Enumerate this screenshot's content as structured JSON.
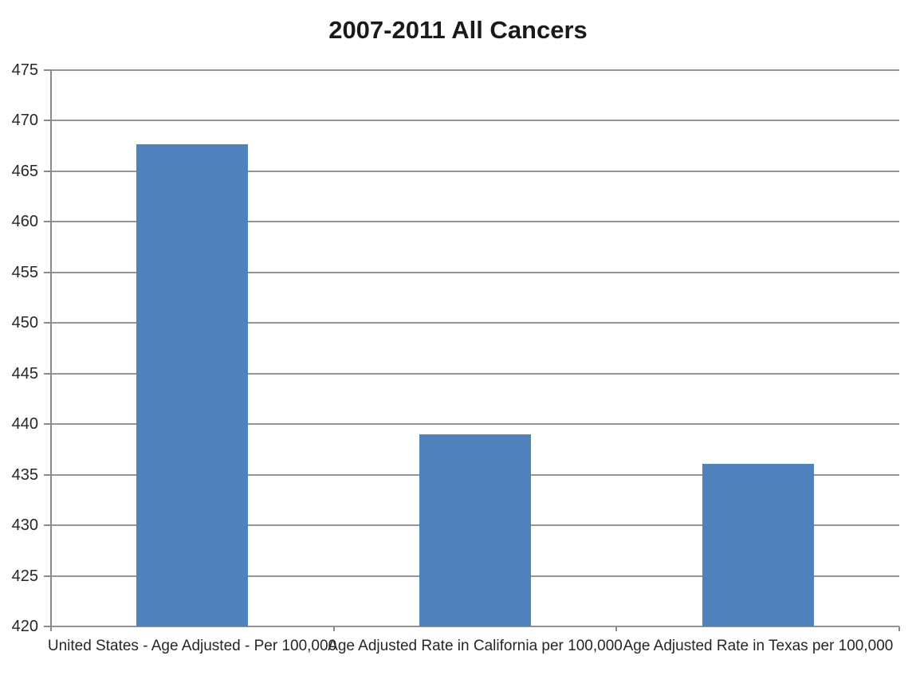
{
  "chart_data": {
    "type": "bar",
    "title": "2007-2011 All Cancers",
    "categories": [
      "United States - Age Adjusted - Per 100,000",
      "Age Adjusted Rate in California per 100,000",
      "Age Adjusted Rate in Texas per 100,000"
    ],
    "values": [
      467.7,
      439,
      436.1
    ],
    "xlabel": "",
    "ylabel": "",
    "ylim": [
      420,
      475
    ],
    "ytick_step": 5,
    "ytick_labels": [
      "475",
      "470",
      "465",
      "460",
      "455",
      "450",
      "445",
      "440",
      "435",
      "430",
      "425",
      "420"
    ],
    "grid": true,
    "legend": false,
    "colors": {
      "bar_fill": "#4f81bd",
      "gridline": "#949494",
      "axis_line": "#8a8a8a",
      "tick_label_text": "#262626",
      "category_label_text": "#262626",
      "title_text": "#1a1a1a",
      "background": "#ffffff"
    }
  }
}
